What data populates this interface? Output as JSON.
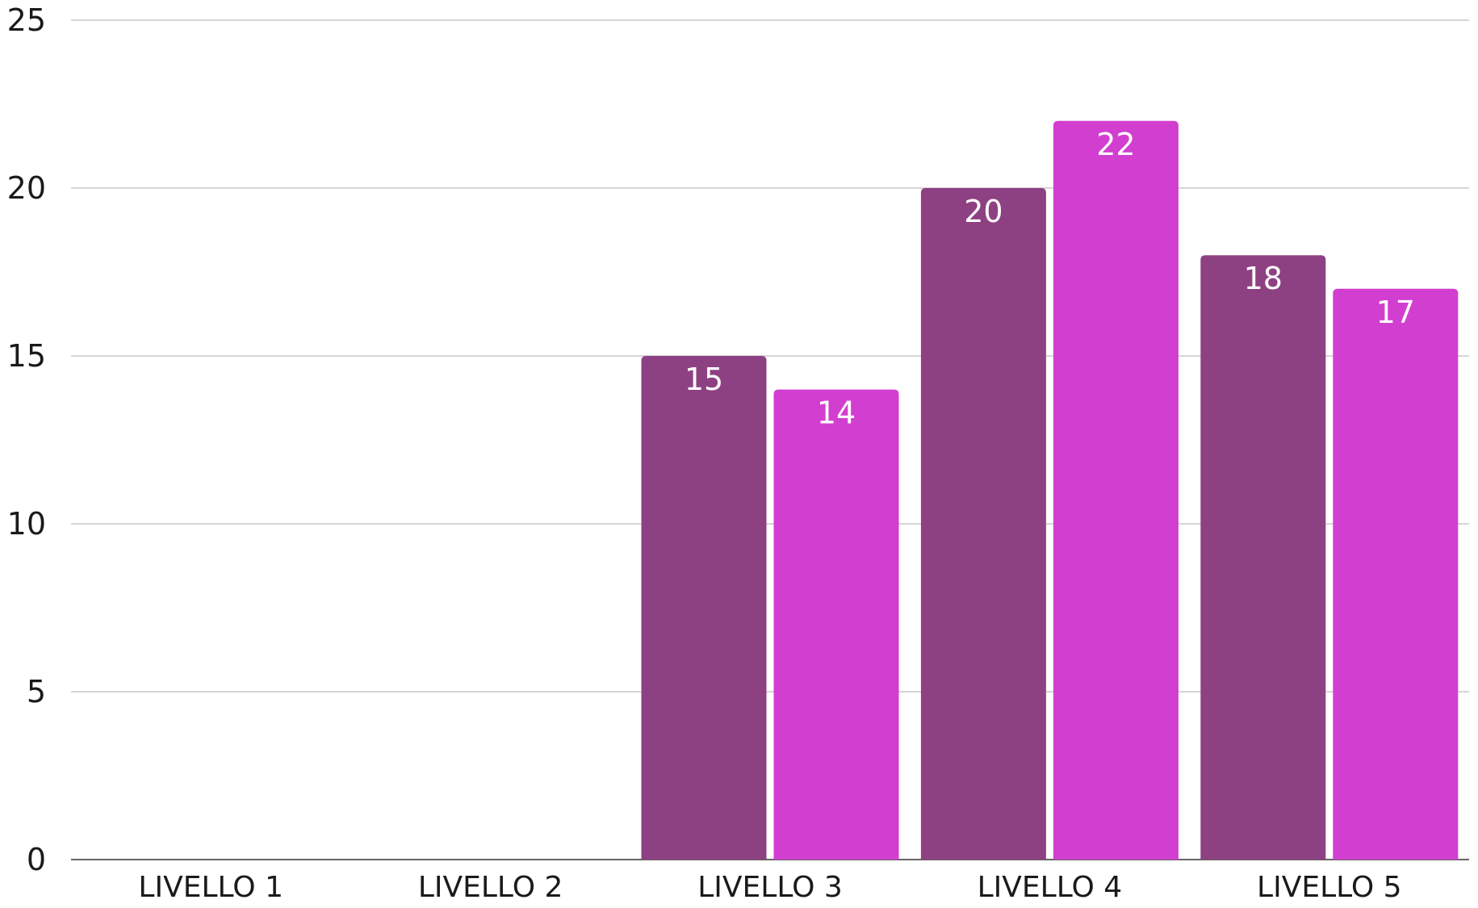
{
  "chart_data": {
    "type": "bar",
    "categories": [
      "LIVELLO 1",
      "LIVELLO 2",
      "LIVELLO 3",
      "LIVELLO 4",
      "LIVELLO 5"
    ],
    "series": [
      {
        "values": [
          null,
          null,
          15,
          20,
          18
        ],
        "color": "#8e4182"
      },
      {
        "values": [
          null,
          null,
          14,
          22,
          17
        ],
        "color": "#d23fd0"
      }
    ],
    "y_ticks": [
      0,
      5,
      10,
      15,
      20,
      25
    ],
    "ylim": [
      0,
      25
    ],
    "title": "",
    "xlabel": "",
    "ylabel": "",
    "grid": "horizontal",
    "legend": "none",
    "data_labels": true
  }
}
